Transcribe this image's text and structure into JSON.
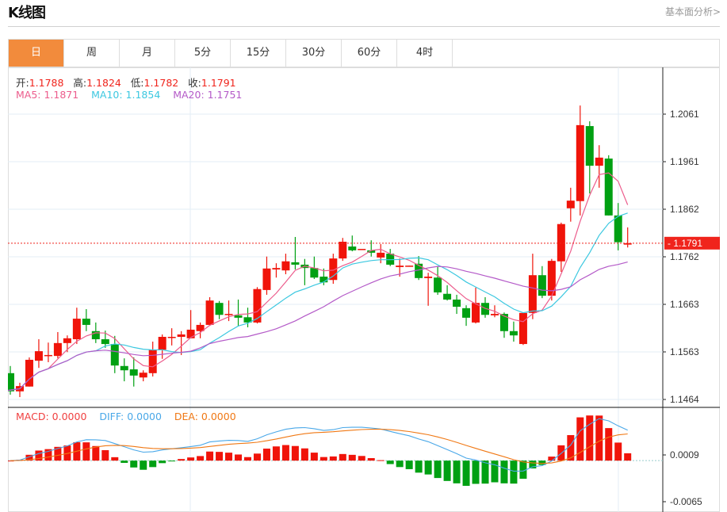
{
  "header": {
    "title": "K线图",
    "link": "基本面分析>"
  },
  "tabs": [
    {
      "label": "日",
      "active": true
    },
    {
      "label": "周"
    },
    {
      "label": "月"
    },
    {
      "label": "5分"
    },
    {
      "label": "15分"
    },
    {
      "label": "30分"
    },
    {
      "label": "60分"
    },
    {
      "label": "4时"
    }
  ],
  "ohlc_info": {
    "open_label": "开:",
    "open": "1.1788",
    "high_label": "高:",
    "high": "1.1824",
    "low_label": "低:",
    "low": "1.1782",
    "close_label": "收:",
    "close": "1.1791"
  },
  "ma_info": {
    "ma5": "MA5: 1.1871",
    "ma10": "MA10: 1.1854",
    "ma20": "MA20: 1.1751"
  },
  "macd_info": {
    "macd": "MACD: 0.0000",
    "diff": "DIFF: 0.0000",
    "dea": "DEA: 0.0000"
  },
  "colors": {
    "up": "#f0140a",
    "down": "#00a012",
    "ma5": "#ec5c8c",
    "ma10": "#3cc8e0",
    "ma20": "#b45ac8",
    "diff": "#4aa8e8",
    "dea": "#f07814",
    "accent": "#f28b3c"
  },
  "chart_data": [
    {
      "type": "candlestick",
      "y_ticks": [
        "1.2061",
        "1.1961",
        "1.1862",
        "1.1762",
        "1.1663",
        "1.1563",
        "1.1464"
      ],
      "ylim": [
        1.1464,
        1.2061
      ],
      "current_price": "1.1791",
      "series_columns": [
        "open",
        "high",
        "low",
        "close"
      ],
      "candles": [
        [
          1.1519,
          1.1534,
          1.1474,
          1.1481
        ],
        [
          1.1481,
          1.1499,
          1.1469,
          1.1492
        ],
        [
          1.1491,
          1.1552,
          1.1491,
          1.1547
        ],
        [
          1.1545,
          1.159,
          1.153,
          1.1565
        ],
        [
          1.1557,
          1.1583,
          1.1542,
          1.1557
        ],
        [
          1.1555,
          1.1605,
          1.155,
          1.1582
        ],
        [
          1.1582,
          1.1598,
          1.1563,
          1.1592
        ],
        [
          1.159,
          1.1656,
          1.158,
          1.1633
        ],
        [
          1.1633,
          1.1653,
          1.1607,
          1.162
        ],
        [
          1.1607,
          1.1625,
          1.1582,
          1.159
        ],
        [
          1.159,
          1.1608,
          1.1572,
          1.158
        ],
        [
          1.158,
          1.1597,
          1.1519,
          1.1535
        ],
        [
          1.1534,
          1.155,
          1.1502,
          1.1525
        ],
        [
          1.1527,
          1.1552,
          1.1491,
          1.1514
        ],
        [
          1.151,
          1.1525,
          1.1502,
          1.152
        ],
        [
          1.1519,
          1.1585,
          1.1512,
          1.1568
        ],
        [
          1.1568,
          1.16,
          1.1549,
          1.1595
        ],
        [
          1.1593,
          1.1613,
          1.1577,
          1.1595
        ],
        [
          1.1595,
          1.1607,
          1.1557,
          1.16
        ],
        [
          1.1592,
          1.1651,
          1.1592,
          1.161
        ],
        [
          1.1607,
          1.1625,
          1.1592,
          1.162
        ],
        [
          1.162,
          1.1678,
          1.1618,
          1.1671
        ],
        [
          1.1666,
          1.167,
          1.1632,
          1.1641
        ],
        [
          1.1641,
          1.1671,
          1.1628,
          1.1643
        ],
        [
          1.164,
          1.1673,
          1.1617,
          1.1635
        ],
        [
          1.1636,
          1.1656,
          1.1615,
          1.1625
        ],
        [
          1.1625,
          1.1699,
          1.1623,
          1.1695
        ],
        [
          1.1693,
          1.1763,
          1.1683,
          1.1738
        ],
        [
          1.1736,
          1.1749,
          1.1719,
          1.1739
        ],
        [
          1.1734,
          1.1769,
          1.1726,
          1.1753
        ],
        [
          1.1751,
          1.1804,
          1.1736,
          1.1746
        ],
        [
          1.1746,
          1.1758,
          1.1703,
          1.1739
        ],
        [
          1.1739,
          1.1763,
          1.1716,
          1.1719
        ],
        [
          1.1721,
          1.1738,
          1.1703,
          1.1709
        ],
        [
          1.1714,
          1.1769,
          1.1706,
          1.1759
        ],
        [
          1.1759,
          1.1802,
          1.1754,
          1.1794
        ],
        [
          1.1784,
          1.1807,
          1.1774,
          1.1776
        ],
        [
          1.1777,
          1.1777,
          1.1777,
          1.1779
        ],
        [
          1.1776,
          1.1797,
          1.1763,
          1.1771
        ],
        [
          1.1761,
          1.1789,
          1.1749,
          1.1771
        ],
        [
          1.1769,
          1.1779,
          1.1743,
          1.1746
        ],
        [
          1.1741,
          1.1759,
          1.1721,
          1.1744
        ],
        [
          1.1743,
          1.1744,
          1.1743,
          1.1744
        ],
        [
          1.1748,
          1.1764,
          1.1714,
          1.1718
        ],
        [
          1.1718,
          1.1729,
          1.166,
          1.1721
        ],
        [
          1.1719,
          1.1743,
          1.1683,
          1.1688
        ],
        [
          1.1685,
          1.1703,
          1.1671,
          1.1673
        ],
        [
          1.1673,
          1.1683,
          1.1643,
          1.1658
        ],
        [
          1.1655,
          1.1661,
          1.1618,
          1.1635
        ],
        [
          1.1625,
          1.1698,
          1.1623,
          1.1666
        ],
        [
          1.1666,
          1.1678,
          1.1635,
          1.1641
        ],
        [
          1.164,
          1.1661,
          1.1636,
          1.1643
        ],
        [
          1.1643,
          1.1646,
          1.1593,
          1.1607
        ],
        [
          1.1607,
          1.1627,
          1.1585,
          1.1598
        ],
        [
          1.158,
          1.1646,
          1.1578,
          1.1645
        ],
        [
          1.1645,
          1.1769,
          1.1632,
          1.1724
        ],
        [
          1.1724,
          1.1743,
          1.1676,
          1.1681
        ],
        [
          1.1681,
          1.1758,
          1.1671,
          1.1754
        ],
        [
          1.1753,
          1.1834,
          1.1731,
          1.1831
        ],
        [
          1.1864,
          1.1907,
          1.1836,
          1.188
        ],
        [
          1.1879,
          1.2079,
          1.1849,
          1.2038
        ],
        [
          1.2036,
          1.2046,
          1.1895,
          1.1953
        ],
        [
          1.1953,
          1.1996,
          1.1907,
          1.197
        ],
        [
          1.1968,
          1.1975,
          1.1849,
          1.1849
        ],
        [
          1.1849,
          1.1875,
          1.1776,
          1.1793
        ],
        [
          1.1788,
          1.1824,
          1.1782,
          1.1791
        ]
      ],
      "moving_averages": [
        5,
        10,
        20
      ]
    },
    {
      "type": "bar+line",
      "name": "MACD",
      "y_ticks": [
        "0.0009",
        "-0.0065"
      ],
      "ylim": [
        -0.0065,
        0.0009
      ]
    }
  ]
}
